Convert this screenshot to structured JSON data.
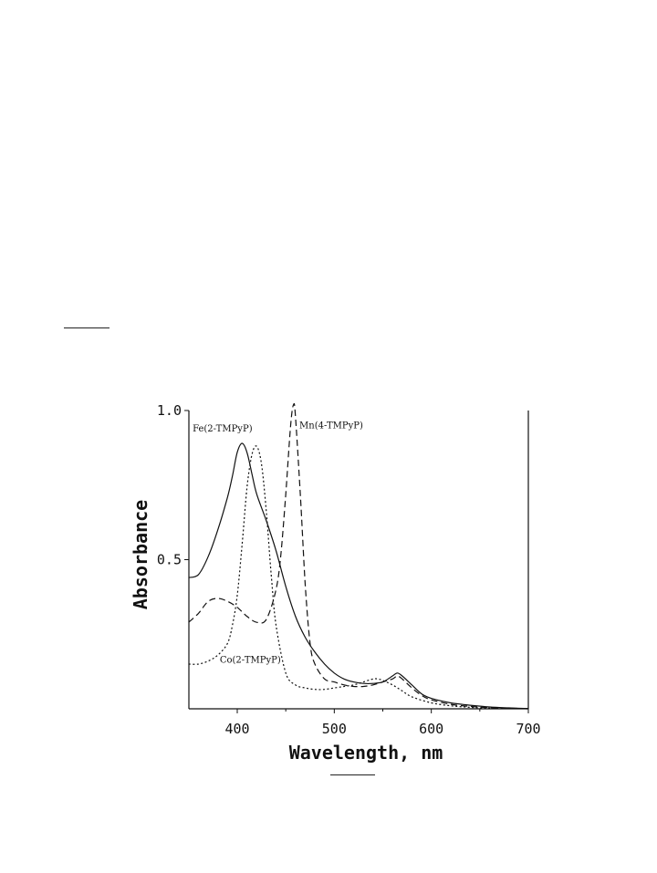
{
  "chart_data": {
    "type": "line",
    "title": "",
    "xlabel": "Wavelength, nm",
    "ylabel": "Absorbance",
    "xlim": [
      350,
      700
    ],
    "ylim": [
      0,
      1.0
    ],
    "x_ticks": [
      400,
      500,
      600,
      700
    ],
    "x_tick_labels": [
      "400",
      "500",
      "600",
      "700"
    ],
    "y_ticks": [
      0.5,
      1.0
    ],
    "y_tick_labels": [
      "0.5",
      "1.0"
    ],
    "grid": false,
    "series": [
      {
        "name": "Fe(2-TMPyP)",
        "style": "solid",
        "color": "#111111",
        "x": [
          350,
          360,
          370,
          380,
          390,
          395,
          400,
          405,
          410,
          415,
          420,
          430,
          440,
          450,
          460,
          470,
          480,
          490,
          500,
          510,
          520,
          530,
          540,
          550,
          560,
          565,
          570,
          580,
          590,
          600,
          620,
          640,
          660,
          680,
          700
        ],
        "y": [
          0.44,
          0.45,
          0.51,
          0.6,
          0.71,
          0.78,
          0.86,
          0.89,
          0.86,
          0.79,
          0.72,
          0.63,
          0.53,
          0.41,
          0.31,
          0.24,
          0.19,
          0.15,
          0.12,
          0.1,
          0.09,
          0.085,
          0.085,
          0.09,
          0.11,
          0.12,
          0.11,
          0.08,
          0.05,
          0.035,
          0.02,
          0.012,
          0.006,
          0.003,
          0.001
        ]
      },
      {
        "name": "Mn(4-TMPyP)",
        "style": "dashed",
        "color": "#111111",
        "x": [
          350,
          360,
          370,
          380,
          390,
          400,
          410,
          420,
          430,
          440,
          445,
          450,
          455,
          458,
          460,
          465,
          470,
          475,
          480,
          490,
          500,
          510,
          520,
          530,
          540,
          550,
          560,
          565,
          570,
          580,
          590,
          600,
          620,
          640,
          660,
          680,
          700
        ],
        "y": [
          0.29,
          0.32,
          0.36,
          0.37,
          0.36,
          0.34,
          0.31,
          0.29,
          0.3,
          0.4,
          0.52,
          0.72,
          0.95,
          1.02,
          0.98,
          0.72,
          0.42,
          0.22,
          0.15,
          0.1,
          0.09,
          0.08,
          0.075,
          0.075,
          0.08,
          0.09,
          0.1,
          0.11,
          0.1,
          0.07,
          0.045,
          0.03,
          0.015,
          0.008,
          0.004,
          0.002,
          0.001
        ]
      },
      {
        "name": "Co(2-TMPyP)",
        "style": "dotted",
        "color": "#111111",
        "x": [
          350,
          360,
          370,
          380,
          390,
          395,
          400,
          405,
          410,
          415,
          420,
          425,
          430,
          435,
          440,
          450,
          460,
          470,
          480,
          490,
          500,
          510,
          520,
          530,
          540,
          545,
          550,
          560,
          570,
          580,
          600,
          620,
          640,
          660,
          680,
          700
        ],
        "y": [
          0.15,
          0.15,
          0.16,
          0.18,
          0.22,
          0.28,
          0.38,
          0.55,
          0.74,
          0.85,
          0.88,
          0.82,
          0.66,
          0.45,
          0.28,
          0.12,
          0.08,
          0.07,
          0.065,
          0.065,
          0.07,
          0.075,
          0.08,
          0.09,
          0.1,
          0.1,
          0.095,
          0.08,
          0.06,
          0.04,
          0.02,
          0.01,
          0.005,
          0.002,
          0.001,
          0.0
        ]
      }
    ],
    "annotations": [
      {
        "text": "Fe(2-TMPyP)",
        "x": 354,
        "y": 0.93
      },
      {
        "text": "Mn(4-TMPyP)",
        "x": 464,
        "y": 0.94
      },
      {
        "text": "Co(2-TMPyP)",
        "x": 382,
        "y": 0.155
      }
    ]
  }
}
